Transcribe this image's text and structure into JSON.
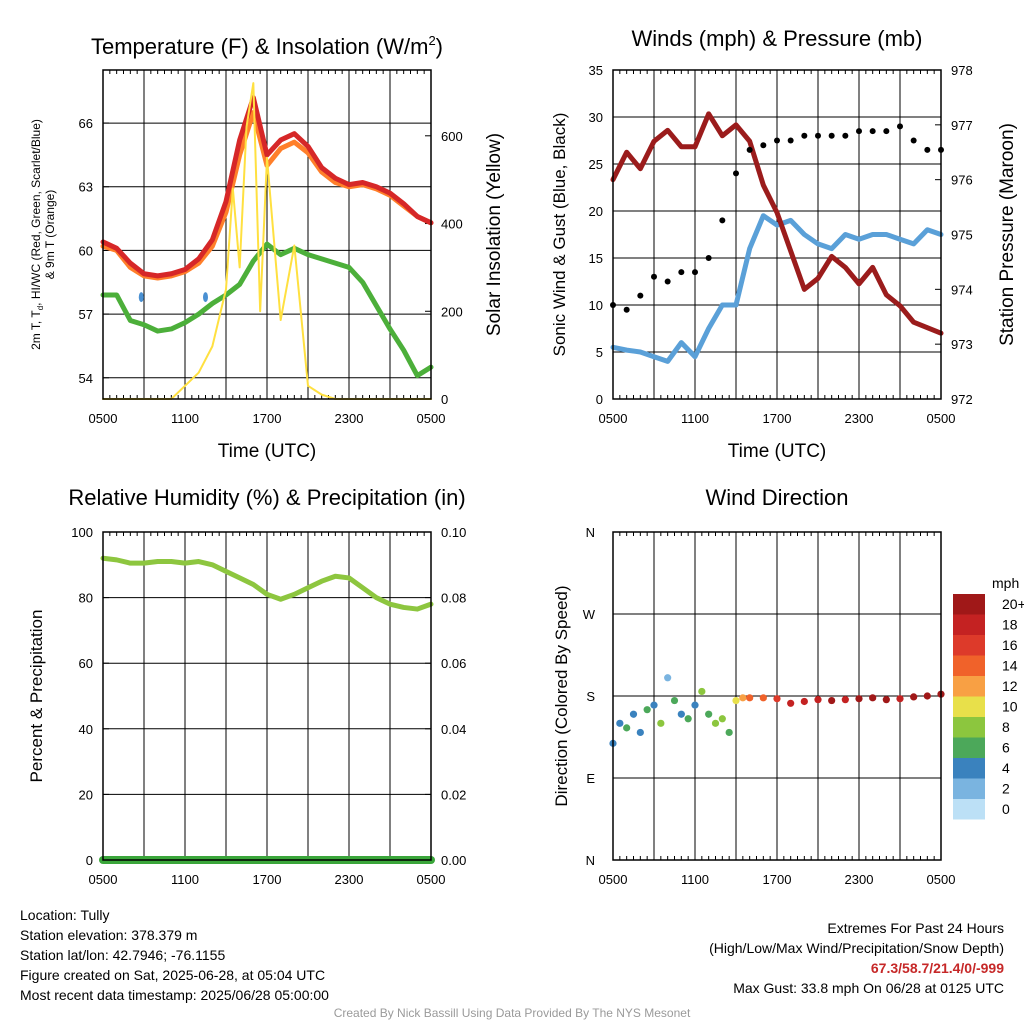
{
  "chart_data": [
    {
      "type": "line",
      "title": "Temperature (F) & Insolation (W/m",
      "title_sup": "2",
      "title_tail": ")",
      "xlabel": "Time (UTC)",
      "ylabel_lines": [
        "2m T, T",
        "d",
        ", HI/WC (Red, Green, Scarlet/Blue)",
        "& 9m T (Orange)"
      ],
      "ylabel_right": "Solar Insolation (Yellow)",
      "x_ticks": [
        "0500",
        "1100",
        "1700",
        "2300",
        "0500"
      ],
      "x_range_hours": [
        0,
        24
      ],
      "ylim": [
        53,
        68.5
      ],
      "y_ticks": [
        54,
        57,
        60,
        63,
        66
      ],
      "y2lim": [
        0,
        750
      ],
      "y2_ticks": [
        0,
        200,
        400,
        600
      ],
      "grid": true,
      "series": [
        {
          "color": "#ff7f2a",
          "x": [
            0,
            1,
            2,
            3,
            4,
            5,
            6,
            7,
            8,
            9,
            10,
            11,
            12,
            13,
            14,
            15,
            16,
            17,
            18,
            19,
            20,
            21,
            22,
            23,
            24
          ],
          "y": [
            60.2,
            60.0,
            59.2,
            58.8,
            58.7,
            58.8,
            59.0,
            59.4,
            60.2,
            61.8,
            64.5,
            66.5,
            64.0,
            64.8,
            65.1,
            64.6,
            63.7,
            63.2,
            63.0,
            63.1,
            62.9,
            62.6,
            62.1,
            61.6,
            61.3
          ]
        },
        {
          "color": "#d62728",
          "x": [
            0,
            1,
            2,
            3,
            4,
            5,
            6,
            7,
            8,
            9,
            10,
            11,
            12,
            13,
            14,
            15,
            16,
            17,
            18,
            19,
            20,
            21,
            22,
            23,
            24
          ],
          "y": [
            60.4,
            60.1,
            59.4,
            58.9,
            58.8,
            58.9,
            59.1,
            59.6,
            60.5,
            62.3,
            65.2,
            67.2,
            64.5,
            65.2,
            65.5,
            64.9,
            63.9,
            63.4,
            63.1,
            63.2,
            63.0,
            62.7,
            62.2,
            61.6,
            61.3
          ]
        },
        {
          "color": "#4caf3a",
          "x": [
            0,
            1,
            2,
            3,
            4,
            5,
            6,
            7,
            8,
            9,
            10,
            11,
            12,
            13,
            14,
            15,
            16,
            17,
            18,
            19,
            20,
            21,
            22,
            23,
            24
          ],
          "y": [
            57.9,
            57.9,
            56.7,
            56.5,
            56.2,
            56.3,
            56.6,
            57.0,
            57.5,
            57.9,
            58.4,
            59.5,
            60.3,
            59.8,
            60.1,
            59.8,
            59.6,
            59.4,
            59.2,
            58.5,
            57.4,
            56.3,
            55.3,
            54.1,
            54.5
          ]
        },
        {
          "color": "#ffe040",
          "x": [
            0,
            1,
            2,
            3,
            4,
            5,
            6,
            7,
            8,
            9,
            9.5,
            10,
            10.5,
            11,
            11.5,
            12,
            13,
            14,
            15,
            16,
            17,
            18,
            19,
            20,
            21,
            22,
            23,
            24
          ],
          "y2": [
            0,
            0,
            0,
            0,
            0,
            0,
            30,
            60,
            120,
            250,
            480,
            300,
            620,
            720,
            200,
            550,
            180,
            350,
            30,
            10,
            0,
            0,
            0,
            0,
            0,
            0,
            0,
            0
          ]
        },
        {
          "color": "#4a90d2",
          "points": [
            [
              2.8,
              57.8
            ],
            [
              7.5,
              57.8
            ]
          ]
        }
      ]
    },
    {
      "type": "line",
      "title": "Winds (mph) & Pressure (mb)",
      "xlabel": "Time (UTC)",
      "ylabel": "Sonic Wind & Gust (Blue, Black)",
      "ylabel_right": "Station Pressure (Maroon)",
      "x_ticks": [
        "0500",
        "1100",
        "1700",
        "2300",
        "0500"
      ],
      "x_range_hours": [
        0,
        24
      ],
      "ylim": [
        0,
        35
      ],
      "y_ticks": [
        0,
        5,
        10,
        15,
        20,
        25,
        30,
        35
      ],
      "y2lim": [
        972,
        978
      ],
      "y2_ticks": [
        972,
        973,
        974,
        975,
        976,
        977,
        978
      ],
      "grid": true,
      "series": [
        {
          "color": "#5aa0d8",
          "x": [
            0,
            1,
            2,
            3,
            4,
            5,
            6,
            7,
            8,
            9,
            10,
            11,
            12,
            13,
            14,
            15,
            16,
            17,
            18,
            19,
            20,
            21,
            22,
            23,
            24
          ],
          "y": [
            5.5,
            5.2,
            5.0,
            4.5,
            4.0,
            6.0,
            4.5,
            7.5,
            10.0,
            10.0,
            16.0,
            19.5,
            18.5,
            19.0,
            17.5,
            16.5,
            16.0,
            17.5,
            17.0,
            17.5,
            17.5,
            17.0,
            16.5,
            18.0,
            17.5
          ]
        },
        {
          "color": "#9b1c1c",
          "x": [
            0,
            1,
            2,
            3,
            4,
            5,
            6,
            7,
            8,
            9,
            10,
            11,
            12,
            13,
            14,
            15,
            16,
            17,
            18,
            19,
            20,
            21,
            22,
            23,
            24
          ],
          "y2": [
            976.0,
            976.5,
            976.2,
            976.7,
            976.9,
            976.6,
            976.6,
            977.2,
            976.8,
            977.0,
            976.7,
            975.9,
            975.4,
            974.7,
            974.0,
            974.2,
            974.6,
            974.4,
            974.1,
            974.4,
            973.9,
            973.7,
            973.4,
            973.3,
            973.2
          ]
        },
        {
          "color": "#000000",
          "x": [
            0,
            1,
            2,
            3,
            4,
            5,
            6,
            7,
            8,
            9,
            10,
            11,
            12,
            13,
            14,
            15,
            16,
            17,
            18,
            19,
            20,
            21,
            22,
            23,
            24
          ],
          "y": [
            10.0,
            9.5,
            11.0,
            13.0,
            12.5,
            13.5,
            13.5,
            15.0,
            19.0,
            24.0,
            26.5,
            27.0,
            27.5,
            27.5,
            28.0,
            28.0,
            28.0,
            28.0,
            28.5,
            28.5,
            28.5,
            29.0,
            27.5,
            26.5,
            26.5
          ]
        }
      ]
    },
    {
      "type": "line",
      "title": "Relative Humidity (%) & Precipitation (in)",
      "xlabel": "",
      "ylabel": "Percent & Precipitation",
      "x_ticks": [
        "0500",
        "1100",
        "1700",
        "2300",
        "0500"
      ],
      "x_range_hours": [
        0,
        24
      ],
      "ylim": [
        0,
        100
      ],
      "y_ticks": [
        0,
        20,
        40,
        60,
        80,
        100
      ],
      "y2lim": [
        0,
        0.1
      ],
      "y2_ticks": [
        "0.00",
        "0.02",
        "0.04",
        "0.06",
        "0.08",
        "0.10"
      ],
      "grid": true,
      "series": [
        {
          "color": "#8dc63f",
          "x": [
            0,
            1,
            2,
            3,
            4,
            5,
            6,
            7,
            8,
            9,
            10,
            11,
            12,
            13,
            14,
            15,
            16,
            17,
            18,
            19,
            20,
            21,
            22,
            23,
            24
          ],
          "y": [
            92,
            91.5,
            90.5,
            90.5,
            91,
            91,
            90.5,
            91,
            90,
            88,
            86,
            84,
            81,
            79.5,
            81,
            83,
            85,
            86.5,
            86,
            83,
            80,
            78,
            77,
            76.5,
            78
          ]
        },
        {
          "color": "#3aa63a",
          "x": [
            0,
            24
          ],
          "y2": [
            0,
            0
          ]
        }
      ]
    },
    {
      "type": "scatter",
      "title": "Wind Direction",
      "ylabel": "Direction (Colored By Speed)",
      "x_ticks": [
        "0500",
        "1100",
        "1700",
        "2300",
        "0500"
      ],
      "x_range_hours": [
        0,
        24
      ],
      "y_ticks": [
        "N",
        "E",
        "S",
        "W",
        "N"
      ],
      "ylim": [
        0,
        360
      ],
      "grid": true,
      "colorbar": {
        "title": "mph",
        "labels": [
          "20+",
          "18",
          "16",
          "14",
          "12",
          "10",
          "8",
          "6",
          "4",
          "2",
          "0"
        ],
        "colors": [
          "#a01818",
          "#c42222",
          "#dd3a2a",
          "#f0622a",
          "#f8a044",
          "#e8e04a",
          "#8cc63e",
          "#4ca85a",
          "#3a82be",
          "#7ab4e0",
          "#bce0f6"
        ]
      },
      "series": [
        {
          "x": [
            0,
            0.5,
            1,
            1.5,
            2,
            2.5,
            3,
            3.5,
            4,
            4.5,
            5,
            5.5,
            6,
            6.5,
            7,
            7.5,
            8,
            8.5,
            9,
            9.5,
            10,
            11,
            12,
            13,
            14,
            15,
            16,
            17,
            18,
            19,
            20,
            21,
            22,
            23,
            24
          ],
          "y": [
            128,
            150,
            145,
            160,
            140,
            165,
            170,
            150,
            200,
            175,
            160,
            155,
            170,
            185,
            160,
            150,
            155,
            140,
            175,
            178,
            178,
            178,
            177,
            172,
            174,
            176,
            175,
            176,
            177,
            178,
            176,
            177,
            179,
            180,
            182
          ],
          "c": [
            4,
            4,
            6,
            4,
            4,
            6,
            4,
            8,
            2,
            6,
            4,
            6,
            4,
            8,
            6,
            8,
            8,
            6,
            10,
            12,
            14,
            14,
            16,
            18,
            18,
            18,
            20,
            18,
            20,
            20,
            20,
            18,
            20,
            20,
            20
          ]
        }
      ]
    }
  ],
  "info": {
    "location": "Location: Tully",
    "elevation": "Station elevation: 378.379 m",
    "latlon": "Station lat/lon: 42.7946; -76.1155",
    "created": "Figure created on Sat, 2025-06-28, at 05:04 UTC",
    "recent": "Most recent data timestamp: 2025/06/28 05:00:00"
  },
  "extremes": {
    "title": "Extremes For Past 24 Hours",
    "subtitle": "(High/Low/Max Wind/Precipitation/Snow Depth)",
    "values": "67.3/58.7/21.4/0/-999",
    "gust": "Max Gust: 33.8 mph On 06/28 at 0125 UTC"
  },
  "credit": "Created By Nick Bassill Using Data Provided By The NYS Mesonet"
}
